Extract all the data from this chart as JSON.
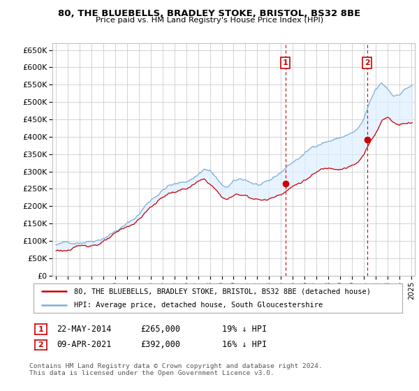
{
  "title": "80, THE BLUEBELLS, BRADLEY STOKE, BRISTOL, BS32 8BE",
  "subtitle": "Price paid vs. HM Land Registry's House Price Index (HPI)",
  "background_color": "#ffffff",
  "hpi_color": "#7bafd4",
  "price_color": "#cc0000",
  "fill_color": "#ddeeff",
  "marker_color": "#cc0000",
  "ylim": [
    0,
    670000
  ],
  "yticks": [
    0,
    50000,
    100000,
    150000,
    200000,
    250000,
    300000,
    350000,
    400000,
    450000,
    500000,
    550000,
    600000,
    650000
  ],
  "ytick_labels": [
    "£0",
    "£50K",
    "£100K",
    "£150K",
    "£200K",
    "£250K",
    "£300K",
    "£350K",
    "£400K",
    "£450K",
    "£500K",
    "£550K",
    "£600K",
    "£650K"
  ],
  "sale1": {
    "date": "22-MAY-2014",
    "price": 265000,
    "pct": "19%",
    "direction": "↓",
    "year": 2014.38
  },
  "sale2": {
    "date": "09-APR-2021",
    "price": 392000,
    "pct": "16%",
    "direction": "↓",
    "year": 2021.27
  },
  "legend_line1": "80, THE BLUEBELLS, BRADLEY STOKE, BRISTOL, BS32 8BE (detached house)",
  "legend_line2": "HPI: Average price, detached house, South Gloucestershire",
  "footnote": "Contains HM Land Registry data © Crown copyright and database right 2024.\nThis data is licensed under the Open Government Licence v3.0.",
  "xlim": [
    1994.7,
    2025.3
  ],
  "xticks": [
    1995,
    1996,
    1997,
    1998,
    1999,
    2000,
    2001,
    2002,
    2003,
    2004,
    2005,
    2006,
    2007,
    2008,
    2009,
    2010,
    2011,
    2012,
    2013,
    2014,
    2015,
    2016,
    2017,
    2018,
    2019,
    2020,
    2021,
    2022,
    2023,
    2024,
    2025
  ]
}
